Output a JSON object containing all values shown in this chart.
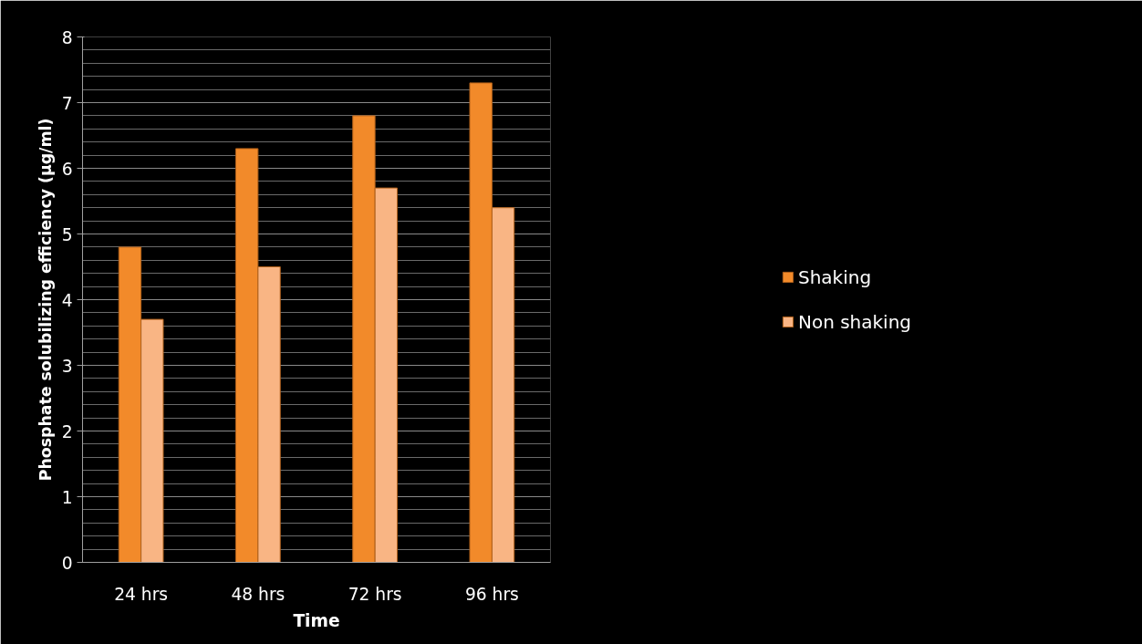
{
  "chart_data": {
    "type": "bar",
    "xlabel": "Time",
    "ylabel": "Phosphate solubilizing efficiency (µg/ml)",
    "categories": [
      "24 hrs",
      "48 hrs",
      "72 hrs",
      "96 hrs"
    ],
    "series": [
      {
        "name": "Shaking",
        "color": "#f28a2a",
        "values": [
          4.8,
          6.3,
          6.8,
          7.3
        ]
      },
      {
        "name": "Non shaking",
        "color": "#f9b584",
        "values": [
          3.7,
          4.5,
          5.7,
          5.4
        ]
      }
    ],
    "ylim": [
      0,
      8
    ],
    "yticks": [
      0,
      1,
      2,
      3,
      4,
      5,
      6,
      7,
      8
    ],
    "grid": "y",
    "legend": "right"
  }
}
